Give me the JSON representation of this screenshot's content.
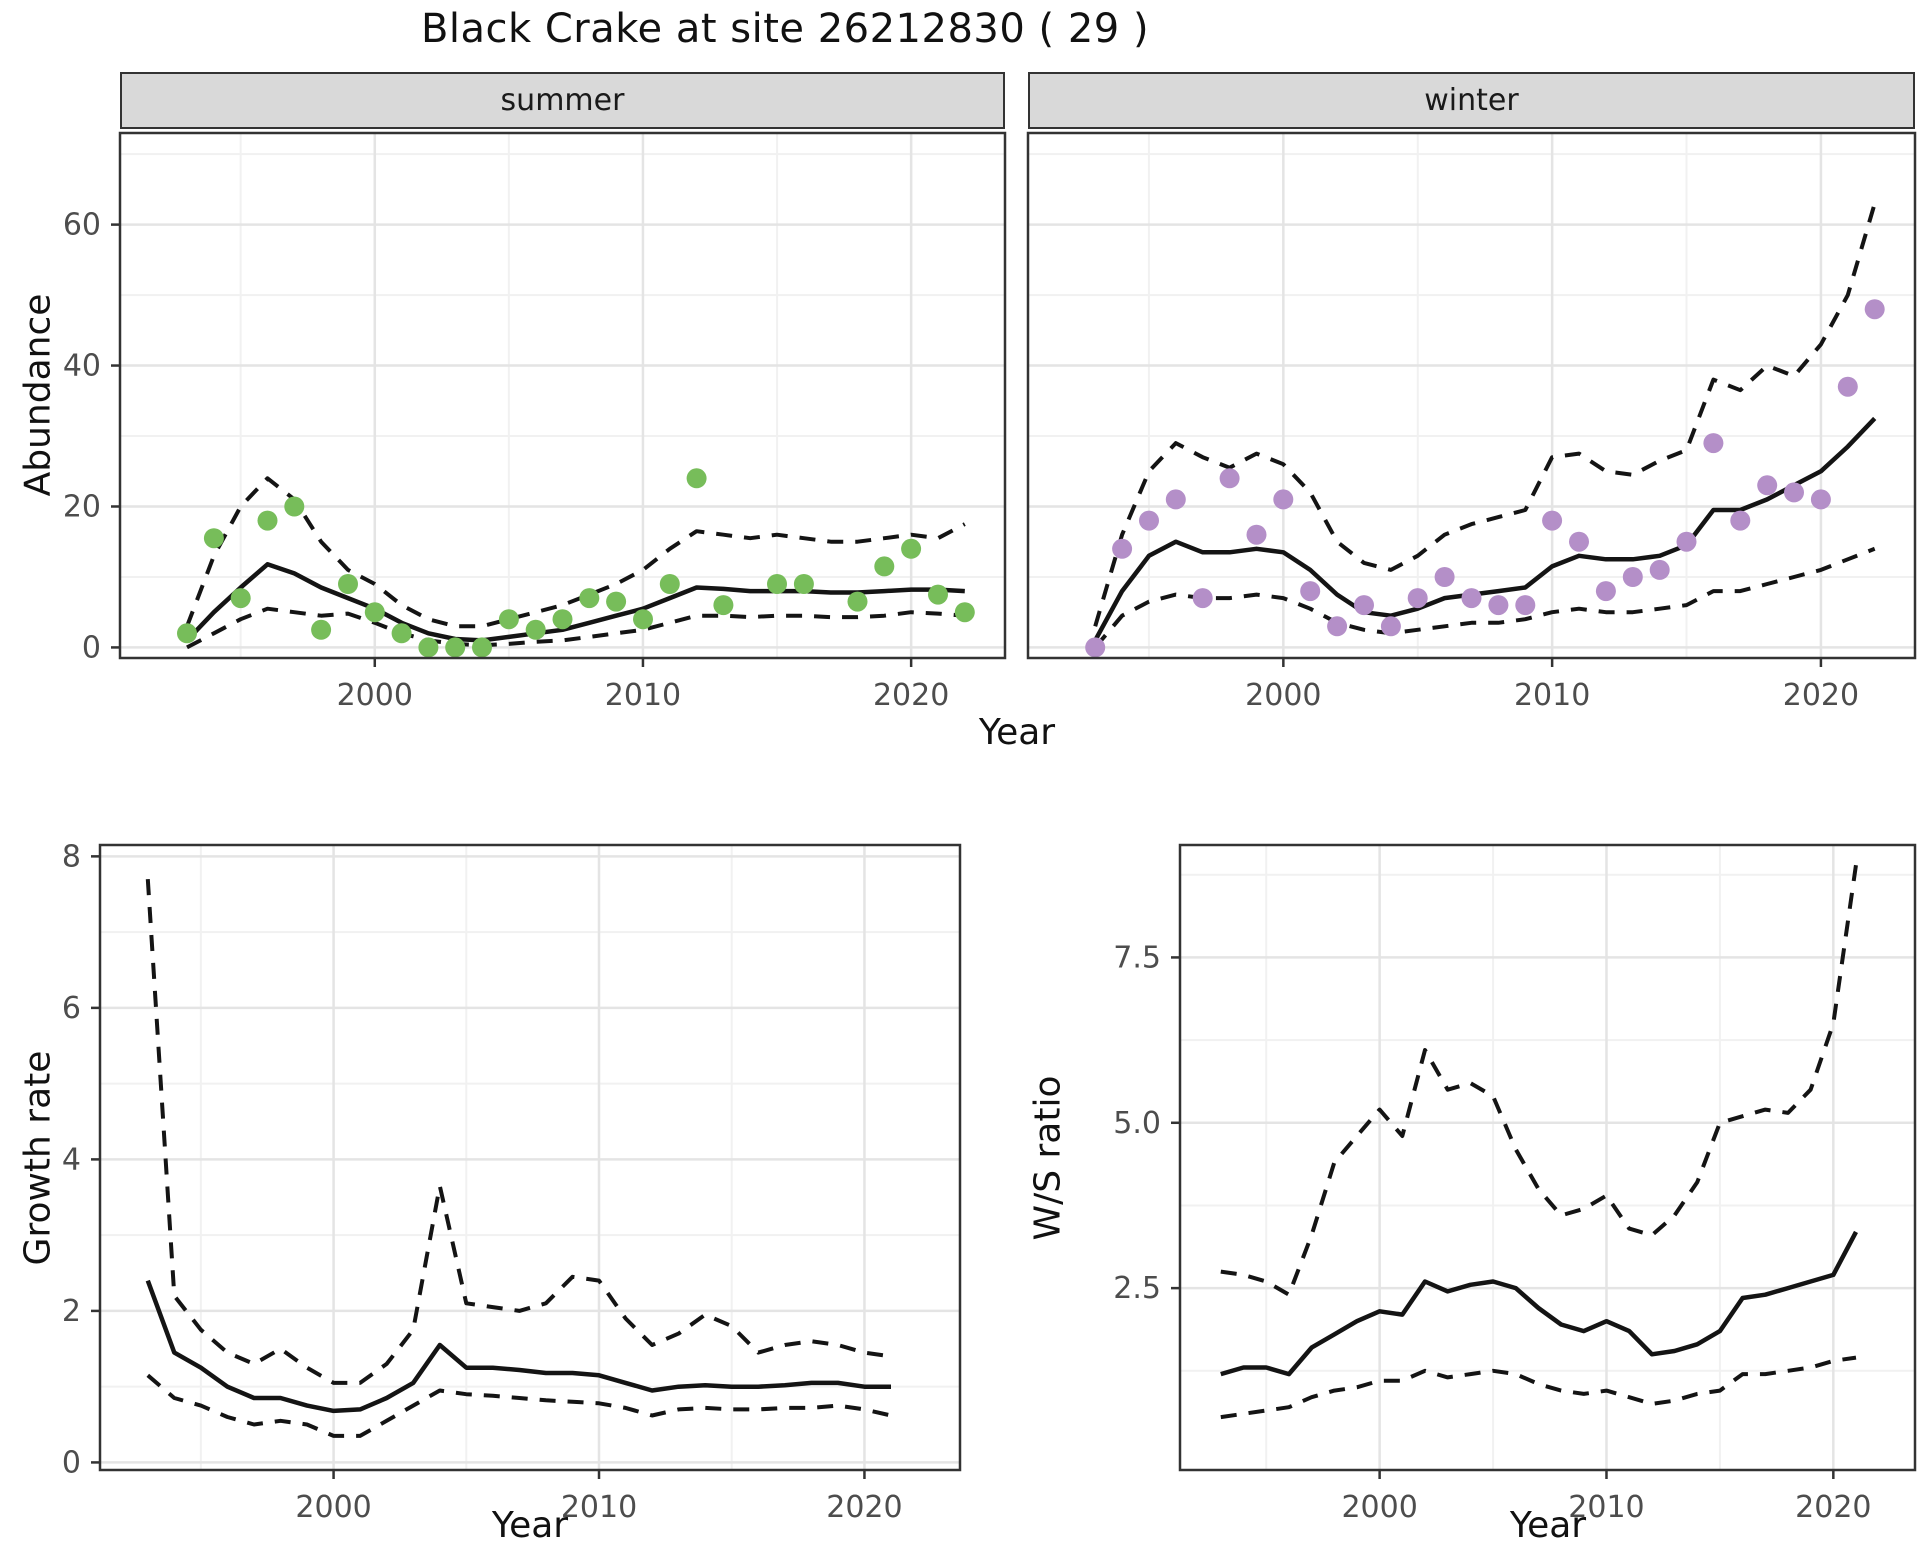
{
  "page": {
    "title": "Black Crake at site 26212830 ( 29 )"
  },
  "colors": {
    "summer_point": "#77bd5a",
    "winter_point": "#b48fc8",
    "line": "#141414",
    "strip_bg": "#d9d9d9",
    "panel_border": "#333333",
    "grid_major": "#e4e4e4",
    "grid_minor": "#f1f1f1",
    "axis_text": "#4d4d4d",
    "tick_mark": "#333333"
  },
  "chart_data": [
    {
      "id": "abundance",
      "type": "line",
      "title": "Black Crake at site 26212830 ( 29 )",
      "xlabel": "Year",
      "ylabel": "Abundance",
      "xlim": [
        1990.5,
        2023.5
      ],
      "ylim": [
        -1.5,
        73
      ],
      "x_ticks": [
        2000,
        2010,
        2020
      ],
      "x_tick_labels": [
        "2000",
        "2010",
        "2020"
      ],
      "x_minor": [
        1995,
        2005,
        2015
      ],
      "y_ticks": [
        0,
        20,
        40,
        60
      ],
      "y_tick_labels": [
        "0",
        "20",
        "40",
        "60"
      ],
      "y_minor": [
        10,
        30,
        50,
        70
      ],
      "grid": "on",
      "years": [
        1993,
        1994,
        1995,
        1996,
        1997,
        1998,
        1999,
        2000,
        2001,
        2002,
        2003,
        2004,
        2005,
        2006,
        2007,
        2008,
        2009,
        2010,
        2011,
        2012,
        2013,
        2014,
        2015,
        2016,
        2017,
        2018,
        2019,
        2020,
        2021,
        2022
      ],
      "facets": [
        {
          "label": "summer",
          "observed": [
            2,
            15.5,
            7,
            18,
            20,
            2.5,
            9,
            5,
            2,
            0,
            0,
            0,
            4,
            2.5,
            4,
            7,
            6.5,
            4,
            9,
            24,
            6,
            null,
            9,
            9,
            null,
            6.5,
            11.5,
            14,
            7.5,
            5
          ],
          "fit": [
            1,
            5,
            8.5,
            11.8,
            10.5,
            8.5,
            7,
            5.5,
            3.5,
            2,
            1.2,
            1,
            1.5,
            2,
            2.5,
            3.5,
            4.5,
            5.5,
            7,
            8.5,
            8.3,
            8,
            8,
            8,
            7.8,
            7.8,
            8,
            8.2,
            8.2,
            8
          ],
          "upper": [
            3,
            13,
            20,
            24,
            21,
            15,
            11,
            9,
            6,
            4,
            3,
            3,
            4,
            5,
            6,
            7.5,
            9,
            11,
            14,
            16.5,
            16,
            15.5,
            16,
            15.5,
            15,
            15,
            15.5,
            16,
            15.5,
            17.5
          ],
          "lower": [
            0,
            2,
            4,
            5.5,
            5,
            4.5,
            4.8,
            3.5,
            2,
            1,
            0.5,
            0.3,
            0.5,
            0.8,
            1,
            1.5,
            2,
            2.5,
            3.5,
            4.5,
            4.5,
            4.3,
            4.5,
            4.5,
            4.3,
            4.3,
            4.5,
            5,
            4.8,
            4.5
          ]
        },
        {
          "label": "winter",
          "observed": [
            0,
            14,
            18,
            21,
            7,
            24,
            16,
            21,
            8,
            3,
            6,
            3,
            7,
            10,
            7,
            6,
            6,
            18,
            15,
            8,
            10,
            11,
            15,
            29,
            18,
            23,
            22,
            21,
            37,
            48
          ],
          "fit": [
            1,
            8,
            13,
            15,
            13.5,
            13.5,
            14,
            13.5,
            11,
            7.5,
            5,
            4.5,
            5.5,
            7,
            7.5,
            8,
            8.5,
            11.5,
            13,
            12.5,
            12.5,
            13,
            14.5,
            19.5,
            19.5,
            21,
            23,
            25,
            28.5,
            32.5
          ],
          "upper": [
            3,
            16,
            25,
            29,
            27,
            25.5,
            27.5,
            26,
            22,
            15,
            12,
            11,
            13,
            16,
            17.5,
            18.5,
            19.5,
            27,
            27.5,
            25,
            24.5,
            26.5,
            28,
            38,
            36.5,
            40,
            38.5,
            43,
            50,
            63
          ],
          "lower": [
            0,
            4.5,
            6.5,
            7.5,
            7,
            7,
            7.5,
            7,
            5.5,
            3.5,
            2.5,
            2,
            2.5,
            3,
            3.5,
            3.5,
            4,
            5,
            5.5,
            5,
            5,
            5.5,
            6,
            8,
            8,
            9,
            10,
            11,
            12.5,
            14
          ]
        }
      ]
    },
    {
      "id": "growth_rate",
      "type": "line",
      "xlabel": "Year",
      "ylabel": "Growth rate",
      "xlim": [
        1991.2,
        2023.6
      ],
      "ylim": [
        -0.1,
        8.15
      ],
      "x_ticks": [
        2000,
        2010,
        2020
      ],
      "x_tick_labels": [
        "2000",
        "2010",
        "2020"
      ],
      "x_minor": [
        1995,
        2005,
        2015
      ],
      "y_ticks": [
        0,
        2,
        4,
        6,
        8
      ],
      "y_tick_labels": [
        "0",
        "2",
        "4",
        "6",
        "8"
      ],
      "y_minor": [
        1,
        3,
        5,
        7
      ],
      "grid": "on",
      "years": [
        1993,
        1994,
        1995,
        1996,
        1997,
        1998,
        1999,
        2000,
        2001,
        2002,
        2003,
        2004,
        2005,
        2006,
        2007,
        2008,
        2009,
        2010,
        2011,
        2012,
        2013,
        2014,
        2015,
        2016,
        2017,
        2018,
        2019,
        2020,
        2021
      ],
      "fit": [
        2.4,
        1.45,
        1.25,
        1.0,
        0.85,
        0.85,
        0.75,
        0.68,
        0.7,
        0.85,
        1.05,
        1.55,
        1.25,
        1.25,
        1.22,
        1.18,
        1.18,
        1.15,
        1.05,
        0.95,
        1.0,
        1.02,
        1.0,
        1.0,
        1.02,
        1.05,
        1.05,
        1.0,
        1.0
      ],
      "upper": [
        7.7,
        2.2,
        1.75,
        1.45,
        1.3,
        1.5,
        1.25,
        1.05,
        1.05,
        1.3,
        1.75,
        3.65,
        2.1,
        2.05,
        2.0,
        2.1,
        2.45,
        2.4,
        1.9,
        1.55,
        1.7,
        1.95,
        1.8,
        1.45,
        1.55,
        1.6,
        1.55,
        1.45,
        1.4
      ],
      "lower": [
        1.15,
        0.85,
        0.75,
        0.6,
        0.5,
        0.55,
        0.5,
        0.35,
        0.35,
        0.55,
        0.75,
        0.95,
        0.9,
        0.88,
        0.85,
        0.82,
        0.8,
        0.78,
        0.72,
        0.62,
        0.7,
        0.72,
        0.7,
        0.7,
        0.72,
        0.72,
        0.75,
        0.7,
        0.62
      ]
    },
    {
      "id": "ws_ratio",
      "type": "line",
      "xlabel": "Year",
      "ylabel": "W/S ratio",
      "xlim": [
        1991.2,
        2023.6
      ],
      "ylim": [
        -0.25,
        9.2
      ],
      "x_ticks": [
        2000,
        2010,
        2020
      ],
      "x_tick_labels": [
        "2000",
        "2010",
        "2020"
      ],
      "x_minor": [
        1995,
        2005,
        2015
      ],
      "y_ticks": [
        2.5,
        5.0,
        7.5
      ],
      "y_tick_labels": [
        "2.5",
        "5.0",
        "7.5"
      ],
      "y_minor": [
        1.25,
        3.75,
        6.25,
        8.75
      ],
      "grid": "on",
      "years": [
        1993,
        1994,
        1995,
        1996,
        1997,
        1998,
        1999,
        2000,
        2001,
        2002,
        2003,
        2004,
        2005,
        2006,
        2007,
        2008,
        2009,
        2010,
        2011,
        2012,
        2013,
        2014,
        2015,
        2016,
        2017,
        2018,
        2019,
        2020,
        2021
      ],
      "fit": [
        1.2,
        1.3,
        1.3,
        1.2,
        1.6,
        1.8,
        2.0,
        2.15,
        2.1,
        2.6,
        2.45,
        2.55,
        2.6,
        2.5,
        2.2,
        1.95,
        1.85,
        2.0,
        1.85,
        1.5,
        1.55,
        1.65,
        1.85,
        2.35,
        2.4,
        2.5,
        2.6,
        2.7,
        3.35
      ],
      "upper": [
        2.75,
        2.7,
        2.6,
        2.4,
        3.3,
        4.4,
        4.8,
        5.2,
        4.8,
        6.1,
        5.5,
        5.6,
        5.4,
        4.6,
        4.0,
        3.6,
        3.7,
        3.9,
        3.4,
        3.3,
        3.6,
        4.1,
        5.0,
        5.1,
        5.2,
        5.15,
        5.5,
        6.5,
        8.9
      ],
      "lower": [
        0.55,
        0.6,
        0.65,
        0.7,
        0.85,
        0.95,
        1.0,
        1.1,
        1.1,
        1.25,
        1.15,
        1.2,
        1.25,
        1.2,
        1.05,
        0.95,
        0.9,
        0.95,
        0.85,
        0.75,
        0.8,
        0.9,
        0.95,
        1.2,
        1.2,
        1.25,
        1.3,
        1.4,
        1.45
      ]
    }
  ]
}
